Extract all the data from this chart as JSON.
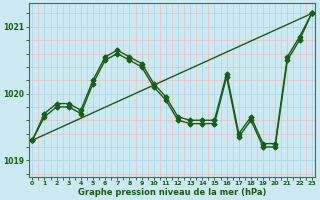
{
  "xlabel": "Graphe pression niveau de la mer (hPa)",
  "bg_color": "#cce8f0",
  "grid_color_major": "#b0d8e8",
  "grid_color_minor": "#d4eef6",
  "line_color": "#1a5c1a",
  "markersize": 2.5,
  "linewidth": 1.0,
  "ylim": [
    1018.75,
    1021.35
  ],
  "xlim": [
    -0.3,
    23.3
  ],
  "yticks": [
    1019,
    1020,
    1021
  ],
  "xticks": [
    0,
    1,
    2,
    3,
    4,
    5,
    6,
    7,
    8,
    9,
    10,
    11,
    12,
    13,
    14,
    15,
    16,
    17,
    18,
    19,
    20,
    21,
    22,
    23
  ],
  "series_straight": {
    "x": [
      0,
      23
    ],
    "y": [
      1019.3,
      1021.2
    ]
  },
  "series_jagged1": {
    "x": [
      0,
      1,
      2,
      3,
      4,
      5,
      6,
      7,
      8,
      9,
      10,
      11,
      12,
      13,
      14,
      15,
      16,
      17,
      18,
      19,
      20,
      21,
      22,
      23
    ],
    "y": [
      1019.3,
      1019.7,
      1019.85,
      1019.85,
      1019.75,
      1020.2,
      1020.55,
      1020.65,
      1020.55,
      1020.45,
      1020.15,
      1019.95,
      1019.65,
      1019.6,
      1019.6,
      1019.6,
      1020.3,
      1019.4,
      1019.65,
      1019.25,
      1019.25,
      1020.55,
      1020.85,
      1021.2
    ]
  },
  "series_jagged2": {
    "x": [
      0,
      1,
      2,
      3,
      4,
      5,
      6,
      7,
      8,
      9,
      10,
      11,
      12,
      13,
      14,
      15,
      16,
      17,
      18,
      19,
      20,
      21,
      22,
      23
    ],
    "y": [
      1019.3,
      1019.65,
      1019.8,
      1019.8,
      1019.7,
      1020.15,
      1020.5,
      1020.6,
      1020.5,
      1020.4,
      1020.1,
      1019.9,
      1019.6,
      1019.55,
      1019.55,
      1019.55,
      1020.25,
      1019.35,
      1019.6,
      1019.2,
      1019.2,
      1020.5,
      1020.8,
      1021.2
    ]
  }
}
